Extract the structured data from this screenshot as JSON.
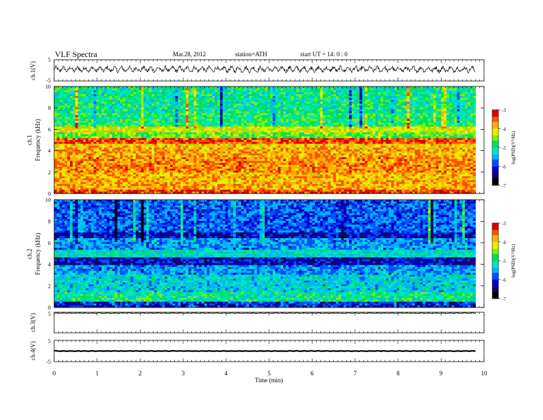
{
  "header": {
    "title": "VLF  Spectra",
    "date": "Mar.28, 2012",
    "station": "station=ATH",
    "start": "start  UT  =    14: 0   : 0"
  },
  "colors": {
    "scale": [
      "#000000",
      "#1a0060",
      "#0000c8",
      "#0050ff",
      "#00b4ff",
      "#00e6c0",
      "#00e060",
      "#80f000",
      "#e6f000",
      "#ffb000",
      "#ff5000",
      "#e00000"
    ]
  },
  "chart_data": [
    {
      "type": "line",
      "id": "ch1",
      "ylabel": "ch.1(V)",
      "ylim": [
        -5,
        5
      ],
      "yticks": [
        "5",
        "-5"
      ],
      "xlim": [
        0,
        10
      ],
      "data_span": [
        0,
        9.8
      ],
      "series": [
        {
          "pattern": "noise",
          "mean": 0.5,
          "amplitude": 1.8
        }
      ]
    },
    {
      "type": "heatmap",
      "id": "ch1-spectrogram",
      "ylabel": "Frequency  (kHz)",
      "channel_label": "ch.1",
      "ylim": [
        0,
        10
      ],
      "yticks": [
        "0",
        "2",
        "4",
        "6",
        "8",
        "10"
      ],
      "xlim": [
        0,
        10
      ],
      "data_span": [
        0,
        9.8
      ],
      "colorbar": {
        "label": "log(PSD)(V²/Hz)",
        "range": [
          -7,
          -3
        ],
        "ticks": [
          "-3",
          "-4",
          "-5",
          "-6",
          "-7"
        ]
      },
      "log_psd_bands": [
        {
          "f": [
            0.0,
            0.3
          ],
          "psd": -3.4
        },
        {
          "f": [
            0.3,
            1.0
          ],
          "psd": -3.8
        },
        {
          "f": [
            1.0,
            2.0
          ],
          "psd": -3.9
        },
        {
          "f": [
            2.0,
            3.4
          ],
          "psd": -3.7
        },
        {
          "f": [
            3.4,
            4.2
          ],
          "psd": -3.8
        },
        {
          "f": [
            4.2,
            4.6
          ],
          "psd": -4.0
        },
        {
          "f": [
            4.6,
            5.2
          ],
          "psd": -3.4
        },
        {
          "f": [
            5.2,
            5.8
          ],
          "psd": -4.6
        },
        {
          "f": [
            5.8,
            6.2
          ],
          "psd": -4.2
        },
        {
          "f": [
            6.2,
            7.5
          ],
          "psd": -4.9
        },
        {
          "f": [
            7.5,
            10.0
          ],
          "psd": -5.0
        }
      ]
    },
    {
      "type": "heatmap",
      "id": "ch2-spectrogram",
      "ylabel": "Frequency  (kHz)",
      "channel_label": "ch.2",
      "ylim": [
        0,
        10
      ],
      "yticks": [
        "0",
        "2",
        "4",
        "6",
        "8",
        "10"
      ],
      "xlim": [
        0,
        10
      ],
      "data_span": [
        0,
        9.8
      ],
      "colorbar": {
        "label": "log(PSD)(V²/Hz)",
        "range": [
          -7,
          -3
        ],
        "ticks": [
          "-3",
          "-4",
          "-5",
          "-6",
          "-7"
        ]
      },
      "log_psd_bands": [
        {
          "f": [
            0.0,
            0.5
          ],
          "psd": -6.0
        },
        {
          "f": [
            0.5,
            1.5
          ],
          "psd": -5.0
        },
        {
          "f": [
            1.5,
            3.0
          ],
          "psd": -5.3
        },
        {
          "f": [
            3.0,
            4.0
          ],
          "psd": -5.6
        },
        {
          "f": [
            4.0,
            4.6
          ],
          "psd": -6.2
        },
        {
          "f": [
            4.6,
            5.4
          ],
          "psd": -5.2
        },
        {
          "f": [
            5.4,
            6.4
          ],
          "psd": -5.6
        },
        {
          "f": [
            6.4,
            7.0
          ],
          "psd": -6.2
        },
        {
          "f": [
            7.0,
            10.0
          ],
          "psd": -5.8
        }
      ]
    },
    {
      "type": "line",
      "id": "ch3",
      "ylabel": "ch.3(V)",
      "ylim": [
        -5,
        5
      ],
      "yticks": [
        "5"
      ],
      "xlim": [
        0,
        10
      ],
      "data_span": [
        0,
        9.8
      ],
      "series": [
        {
          "pattern": "noise",
          "mean": 4.6,
          "amplitude": 0.15
        }
      ]
    },
    {
      "type": "line",
      "id": "ch4",
      "ylabel": "ch.4(V)",
      "ylim": [
        -5,
        5
      ],
      "yticks": [
        "5",
        "-5"
      ],
      "xlim": [
        0,
        10
      ],
      "data_span": [
        0,
        9.8
      ],
      "series": [
        {
          "pattern": "noise",
          "mean": 0.0,
          "amplitude": 0.15
        }
      ]
    }
  ],
  "xaxis": {
    "label": "Time  (min)",
    "ticks": [
      "0",
      "1",
      "2",
      "3",
      "4",
      "5",
      "6",
      "7",
      "8",
      "9",
      "10"
    ]
  }
}
